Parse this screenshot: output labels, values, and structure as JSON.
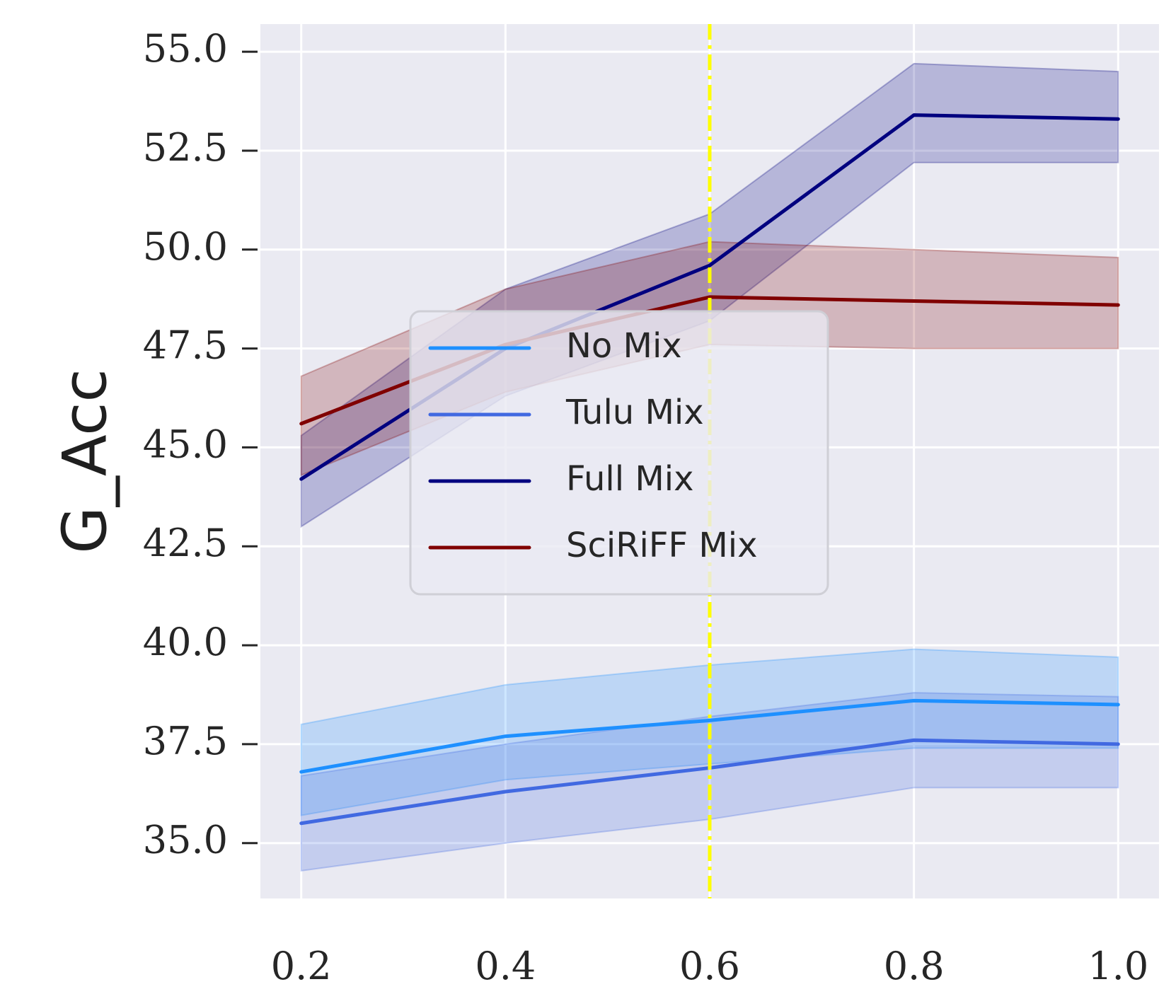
{
  "chart_data": {
    "type": "line",
    "title": "",
    "xlabel": "",
    "ylabel": "G_Acc",
    "x": [
      0.2,
      0.4,
      0.6,
      0.8,
      1.0
    ],
    "x_tick_labels": [
      "0.2",
      "0.4",
      "0.6",
      "0.8",
      "1.0"
    ],
    "y_ticks": [
      35.0,
      37.5,
      40.0,
      42.5,
      45.0,
      47.5,
      50.0,
      52.5,
      55.0
    ],
    "y_tick_labels": [
      "35.0",
      "37.5",
      "40.0",
      "42.5",
      "45.0",
      "47.5",
      "50.0",
      "52.5",
      "55.0"
    ],
    "xlim": [
      0.16,
      1.04
    ],
    "ylim": [
      33.6,
      55.7
    ],
    "grid": true,
    "vline": {
      "x": 0.6,
      "color": "#ffff00",
      "style": "dash-dot"
    },
    "legend": {
      "placement": "center-left"
    },
    "series": [
      {
        "name": "No Mix",
        "color": "#1e90ff",
        "values": [
          36.8,
          37.7,
          38.1,
          38.6,
          38.5
        ],
        "lower": [
          35.7,
          36.6,
          37.0,
          37.4,
          37.4
        ],
        "upper": [
          38.0,
          39.0,
          39.5,
          39.9,
          39.7
        ]
      },
      {
        "name": "Tulu Mix",
        "color": "#4169e1",
        "values": [
          35.5,
          36.3,
          36.9,
          37.6,
          37.5
        ],
        "lower": [
          34.3,
          35.0,
          35.6,
          36.4,
          36.4
        ],
        "upper": [
          36.7,
          37.5,
          38.2,
          38.8,
          38.7
        ]
      },
      {
        "name": "Full Mix",
        "color": "#00007f",
        "values": [
          44.2,
          47.5,
          49.6,
          53.4,
          53.3
        ],
        "lower": [
          43.0,
          46.3,
          48.2,
          52.2,
          52.2
        ],
        "upper": [
          45.3,
          49.0,
          50.9,
          54.7,
          54.5
        ]
      },
      {
        "name": "SciRiFF Mix",
        "color": "#800000",
        "values": [
          45.6,
          47.6,
          48.8,
          48.7,
          48.6
        ],
        "lower": [
          44.3,
          46.4,
          47.6,
          47.5,
          47.5
        ],
        "upper": [
          46.8,
          49.0,
          50.2,
          50.0,
          49.8
        ]
      }
    ]
  }
}
